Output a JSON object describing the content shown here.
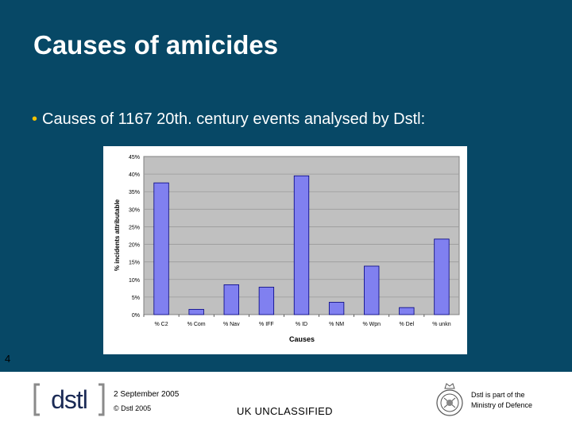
{
  "slide": {
    "title": "Causes of amicides",
    "bullet": "Causes of 1167 20th. century events analysed by Dstl:",
    "page_number": "4"
  },
  "footer": {
    "date": "2 September 2005",
    "copyright": "© Dstl 2005",
    "classification": "UK  UNCLASSIFIED",
    "mod_line1": "Dstl is part of the",
    "mod_line2": "Ministry of Defence",
    "logo_text": "[dstl]"
  },
  "colors": {
    "background": "#074866",
    "bar_fill": "#8080f0",
    "plot_area": "#c0c0c0",
    "bullet": "#f2c200"
  },
  "chart_data": {
    "type": "bar",
    "categories": [
      "% C2",
      "% Com",
      "% Nav",
      "% IFF",
      "% ID",
      "% NM",
      "% Wpn",
      "% Del",
      "% unkn"
    ],
    "values": [
      37.5,
      1.5,
      8.5,
      7.8,
      39.5,
      3.5,
      13.8,
      2.0,
      21.5
    ],
    "xlabel": "Causes",
    "ylabel": "% incidents attributable",
    "ylim": [
      0,
      45
    ],
    "yticks": [
      "0%",
      "5%",
      "10%",
      "15%",
      "20%",
      "25%",
      "30%",
      "35%",
      "40%",
      "45%"
    ],
    "grid": true
  }
}
